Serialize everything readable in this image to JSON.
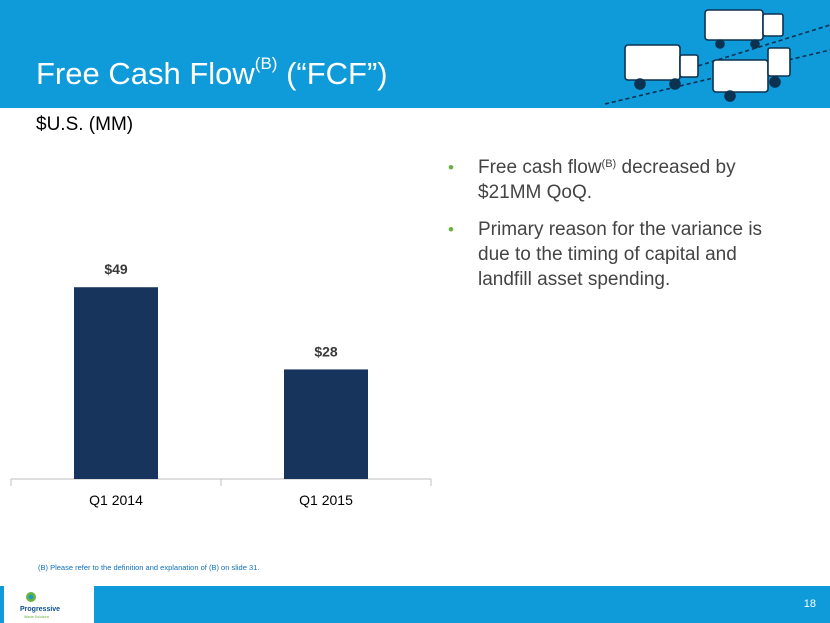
{
  "title": {
    "main": "Free Cash Flow",
    "sup": "(B)",
    "rest": " (“FCF”)"
  },
  "unit_label": "$U.S. (MM)",
  "chart_data": {
    "type": "bar",
    "categories": [
      "Q1 2014",
      "Q1 2015"
    ],
    "values": [
      49,
      28
    ],
    "data_labels": [
      "$49",
      "$28"
    ],
    "ylim": [
      0,
      58
    ],
    "grid": false,
    "bar_color": "#17345c"
  },
  "bullets": [
    {
      "pre": "Free cash flow",
      "sup": "(B)",
      "post": " decreased by $21MM QoQ."
    },
    {
      "pre": "Primary reason for the variance is due to the timing of capital and landfill asset spending.",
      "sup": "",
      "post": ""
    }
  ],
  "bullet_glyph": "•",
  "footnote": "(B)  Please refer to the definition and explanation of (B) on slide 31.",
  "footer": {
    "logo_text": "Progressive",
    "logo_sub": "Waste Solutions",
    "page_number": "18"
  },
  "colors": {
    "header": "#0f9ad9",
    "bar": "#17345c",
    "bullet": "#6ab23e"
  }
}
